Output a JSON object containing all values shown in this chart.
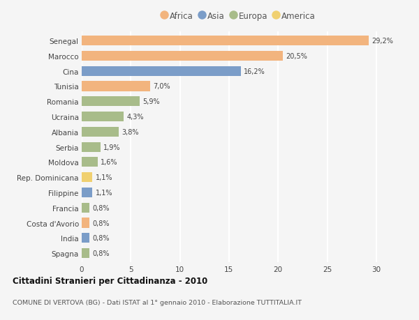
{
  "categories": [
    "Senegal",
    "Marocco",
    "Cina",
    "Tunisia",
    "Romania",
    "Ucraina",
    "Albania",
    "Serbia",
    "Moldova",
    "Rep. Dominicana",
    "Filippine",
    "Francia",
    "Costa d'Avorio",
    "India",
    "Spagna"
  ],
  "values": [
    29.2,
    20.5,
    16.2,
    7.0,
    5.9,
    4.3,
    3.8,
    1.9,
    1.6,
    1.1,
    1.1,
    0.8,
    0.8,
    0.8,
    0.8
  ],
  "labels": [
    "29,2%",
    "20,5%",
    "16,2%",
    "7,0%",
    "5,9%",
    "4,3%",
    "3,8%",
    "1,9%",
    "1,6%",
    "1,1%",
    "1,1%",
    "0,8%",
    "0,8%",
    "0,8%",
    "0,8%"
  ],
  "continents": [
    "Africa",
    "Africa",
    "Asia",
    "Africa",
    "Europa",
    "Europa",
    "Europa",
    "Europa",
    "Europa",
    "America",
    "Asia",
    "Europa",
    "Africa",
    "Asia",
    "Europa"
  ],
  "continent_colors": {
    "Africa": "#F2B47E",
    "Asia": "#7B9DC8",
    "Europa": "#A8BC8A",
    "America": "#F0D070"
  },
  "legend_order": [
    "Africa",
    "Asia",
    "Europa",
    "America"
  ],
  "title": "Cittadini Stranieri per Cittadinanza - 2010",
  "subtitle": "COMUNE DI VERTOVA (BG) - Dati ISTAT al 1° gennaio 2010 - Elaborazione TUTTITALIA.IT",
  "xlim": [
    0,
    32
  ],
  "xticks": [
    0,
    5,
    10,
    15,
    20,
    25,
    30
  ],
  "bg_color": "#f5f5f5",
  "grid_color": "#ffffff",
  "bar_height": 0.65
}
